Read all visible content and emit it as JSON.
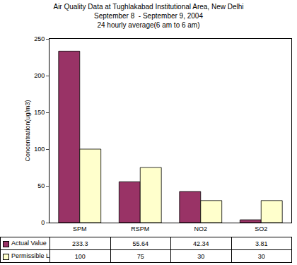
{
  "chart_data": {
    "type": "bar",
    "title": "Air Quality Data at Tughlakabad Institutional Area, New Delhi\nSeptember 8  - September 9, 2004\n24 hourly average(6 am to 6 am)",
    "y_label": "Concentration(ug/m3)",
    "categories": [
      "SPM",
      "RSPM",
      "NO2",
      "SO2"
    ],
    "series": [
      {
        "name": "Actual Value",
        "color": "#993366",
        "values": [
          233.3,
          55.64,
          42.34,
          3.81
        ]
      },
      {
        "name": "Permissible Limit",
        "color": "#ffffcc",
        "values": [
          100,
          75,
          30,
          30
        ]
      }
    ],
    "ylim": [
      0,
      250
    ],
    "yticks": [
      0,
      50,
      100,
      150,
      200,
      250
    ],
    "grid": false,
    "data_labels": true
  }
}
